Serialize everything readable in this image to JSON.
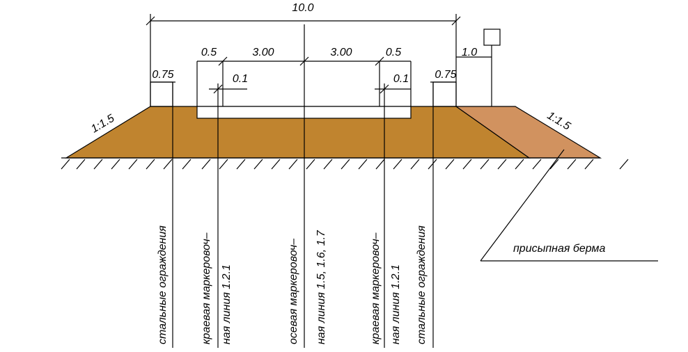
{
  "dimensions": {
    "total": "10.0",
    "shoulder_left": "0.5",
    "lane_left": "3.00",
    "lane_right": "3.00",
    "shoulder_right": "0.5",
    "rail_left": "0.75",
    "marking_left": "0.1",
    "marking_right": "0.1",
    "rail_right": "0.75",
    "sign": "1.0"
  },
  "slopes": {
    "left": "1:1.5",
    "right": "1:1.5"
  },
  "callouts": {
    "rail_left": "стальные ограждения",
    "edge_left_1": "краевая маркеровоч–",
    "edge_left_2": "ная линия 1.2.1",
    "axis_1": "осевая маркеровоч–",
    "axis_2": "ная линия 1.5, 1.6, 1.7",
    "edge_right_1": "краевая маркеровоч–",
    "edge_right_2": "ная линия 1.2.1",
    "rail_right": "стальные ограждения",
    "berm": "присыпная берма"
  }
}
